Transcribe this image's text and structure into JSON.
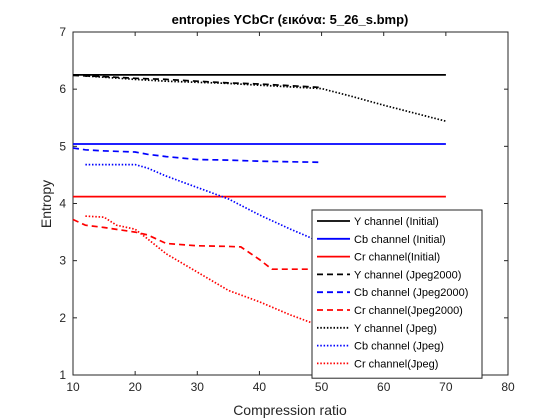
{
  "chart_data": {
    "type": "line",
    "title": "entropies YCbCr (εικόνα: 5_26_s.bmp)",
    "xlabel": "Compression ratio",
    "ylabel": "Entropy",
    "xlim": [
      10,
      80
    ],
    "ylim": [
      1,
      7
    ],
    "xticks": [
      10,
      20,
      30,
      40,
      50,
      60,
      70,
      80
    ],
    "yticks": [
      1,
      2,
      3,
      4,
      5,
      6,
      7
    ],
    "grid": false,
    "legend_position": "bottom-right",
    "series": [
      {
        "name": "Y channel (Initial)",
        "color": "#000000",
        "style": "solid",
        "x": [
          10,
          70
        ],
        "y": [
          6.25,
          6.25
        ]
      },
      {
        "name": "Cb channel (Initial)",
        "color": "#0000ff",
        "style": "solid",
        "x": [
          10,
          70
        ],
        "y": [
          5.04,
          5.04
        ]
      },
      {
        "name": "Cr channel(Initial)",
        "color": "#ff0000",
        "style": "solid",
        "x": [
          10,
          70
        ],
        "y": [
          4.12,
          4.12
        ]
      },
      {
        "name": "Y channel (Jpeg2000)",
        "color": "#000000",
        "style": "dashed",
        "x": [
          10,
          15,
          20,
          25,
          30,
          35,
          40,
          45,
          50
        ],
        "y": [
          6.24,
          6.22,
          6.19,
          6.17,
          6.14,
          6.11,
          6.09,
          6.06,
          6.03
        ]
      },
      {
        "name": "Cb channel (Jpeg2000)",
        "color": "#0000ff",
        "style": "dashed",
        "x": [
          10,
          12,
          15,
          20,
          22,
          25,
          30,
          35,
          40,
          45,
          50
        ],
        "y": [
          4.97,
          4.94,
          4.92,
          4.9,
          4.86,
          4.82,
          4.77,
          4.76,
          4.74,
          4.73,
          4.72
        ]
      },
      {
        "name": "Cr channel(Jpeg2000)",
        "color": "#ff0000",
        "style": "dashed",
        "x": [
          10,
          12,
          15,
          20,
          22,
          25,
          30,
          35,
          37,
          40,
          42,
          45,
          50
        ],
        "y": [
          3.72,
          3.62,
          3.58,
          3.5,
          3.45,
          3.3,
          3.26,
          3.25,
          3.24,
          3.02,
          2.85,
          2.85,
          2.85
        ]
      },
      {
        "name": "Y channel (Jpeg)",
        "color": "#000000",
        "style": "dotted",
        "x": [
          12,
          15,
          20,
          25,
          30,
          35,
          40,
          45,
          50,
          55,
          60,
          65,
          70
        ],
        "y": [
          6.23,
          6.21,
          6.17,
          6.14,
          6.12,
          6.1,
          6.07,
          6.04,
          6.01,
          5.87,
          5.72,
          5.58,
          5.44
        ]
      },
      {
        "name": "Cb channel (Jpeg)",
        "color": "#0000ff",
        "style": "dotted",
        "x": [
          12,
          15,
          20,
          22,
          25,
          30,
          35,
          40,
          45,
          50
        ],
        "y": [
          4.68,
          4.68,
          4.68,
          4.62,
          4.48,
          4.28,
          4.08,
          3.8,
          3.55,
          3.32
        ]
      },
      {
        "name": "Cr channel(Jpeg)",
        "color": "#ff0000",
        "style": "dotted",
        "x": [
          12,
          15,
          17,
          20,
          22,
          25,
          30,
          35,
          40,
          45,
          50
        ],
        "y": [
          3.78,
          3.76,
          3.62,
          3.55,
          3.38,
          3.12,
          2.8,
          2.48,
          2.28,
          2.05,
          1.85
        ]
      }
    ]
  }
}
